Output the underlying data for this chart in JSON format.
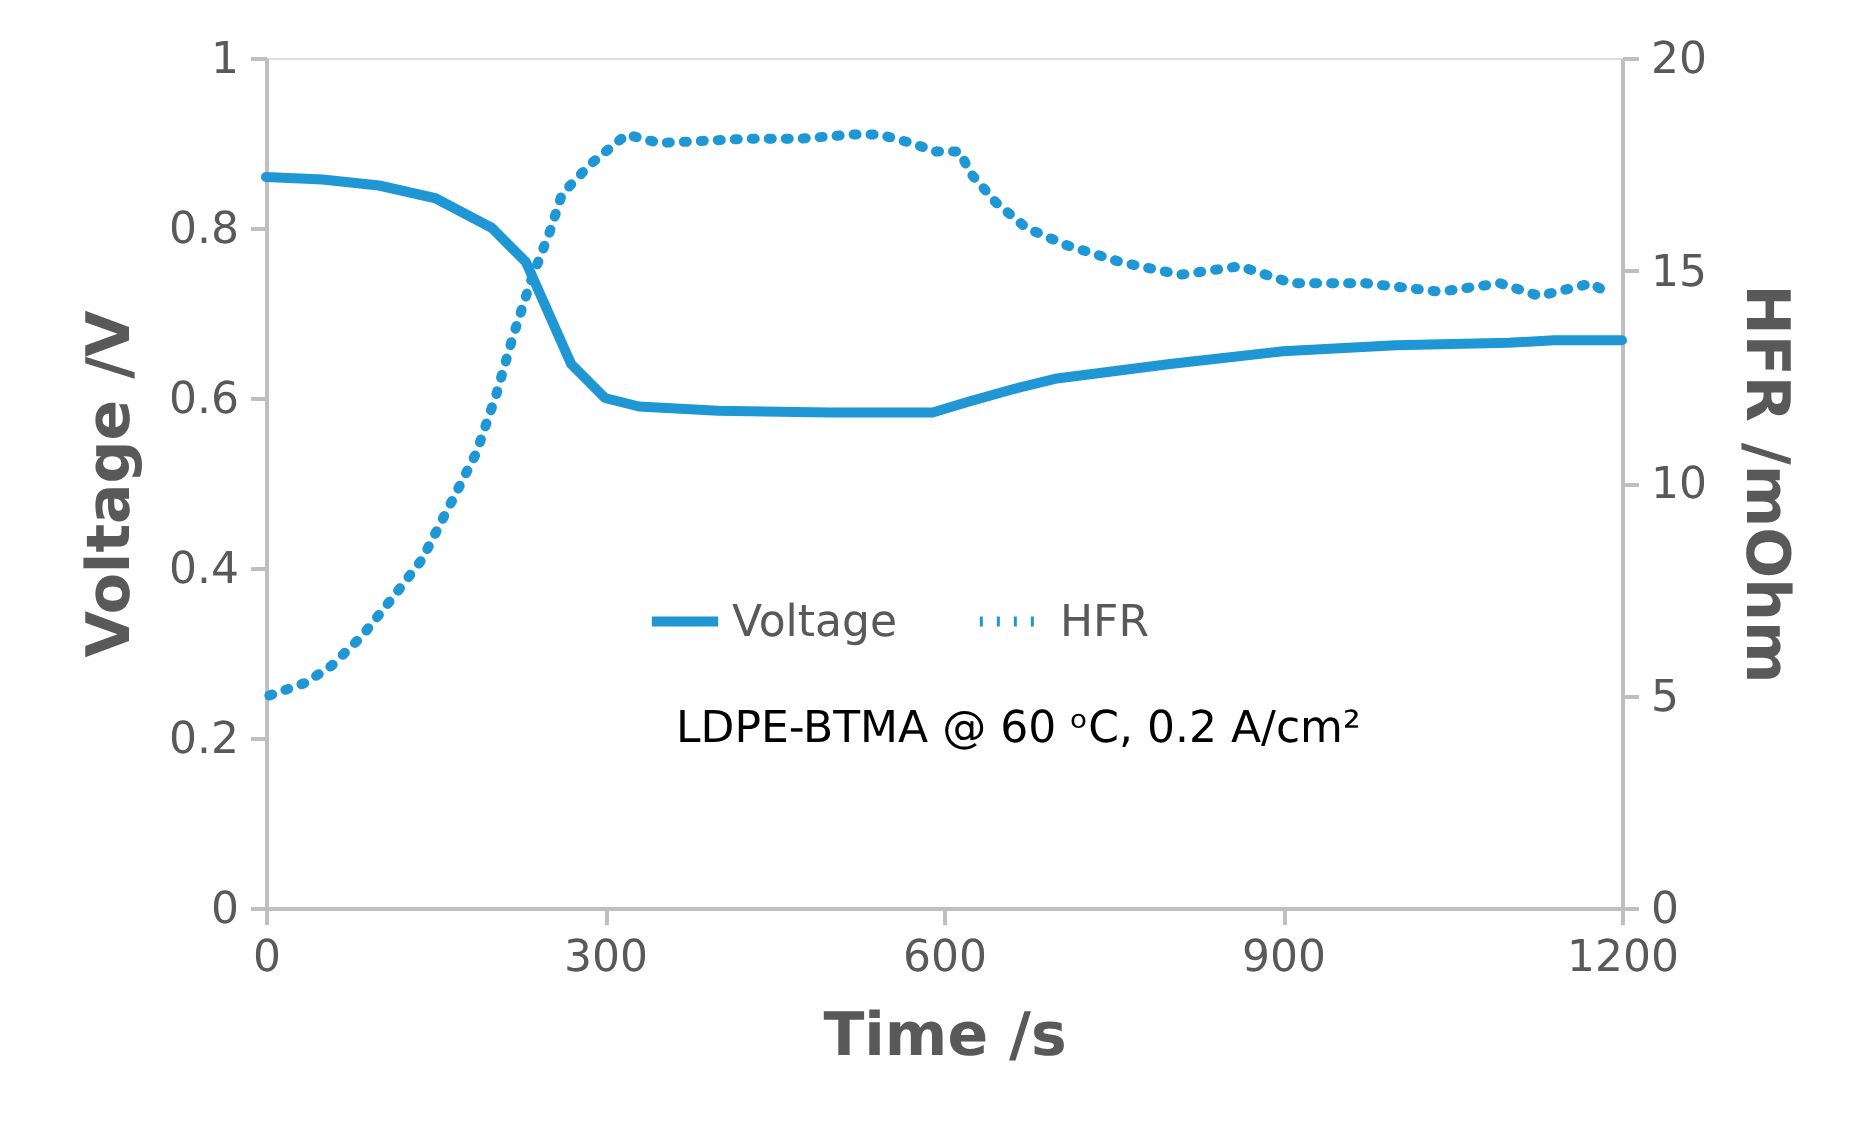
{
  "chart_data": {
    "type": "line",
    "xlabel": "Time /s",
    "ylabel": "Voltage /V",
    "y2label": "HFR /mOhm",
    "xlim": [
      0,
      1200
    ],
    "xticks": [
      0,
      300,
      600,
      900,
      1200
    ],
    "ylim": [
      0,
      1
    ],
    "yticks": [
      0,
      0.2,
      0.4,
      0.6,
      0.8,
      1
    ],
    "y2lim": [
      0,
      20
    ],
    "y2ticks": [
      0,
      5,
      10,
      15,
      20
    ],
    "grid": false,
    "legend": "center",
    "marker": "none",
    "annotations": [
      "LDPE-BTMA @ 60 ᵒC, 0.2 A/cm²"
    ],
    "series": [
      {
        "name": "Voltage",
        "color": "#1f97d4",
        "line_style": "solid",
        "x": [
          0,
          50,
          100,
          150,
          200,
          230,
          250,
          270,
          300,
          330,
          400,
          500,
          590,
          620,
          660,
          700,
          800,
          900,
          1000,
          1100,
          1140,
          1200
        ],
        "values": [
          0.86,
          0.857,
          0.85,
          0.835,
          0.8,
          0.76,
          0.7,
          0.64,
          0.6,
          0.59,
          0.585,
          0.583,
          0.583,
          0.595,
          0.61,
          0.623,
          0.64,
          0.655,
          0.662,
          0.665,
          0.668,
          0.668
        ]
      },
      {
        "name": "HFR",
        "color": "#1f97d4",
        "line_style": "dotted",
        "axis": "y2",
        "x": [
          3,
          35,
          58,
          85,
          115,
          138,
          165,
          186,
          204,
          218,
          235,
          251,
          262,
          287,
          319,
          348,
          425,
          472,
          519,
          543,
          571,
          593,
          614,
          623,
          646,
          673,
          708,
          756,
          809,
          862,
          908,
          973,
          1039,
          1092,
          1127,
          1173,
          1191
        ],
        "values": [
          5.0,
          5.3,
          5.7,
          6.4,
          7.4,
          8.2,
          9.6,
          10.7,
          12.1,
          13.4,
          14.8,
          15.9,
          16.8,
          17.5,
          18.2,
          18.0,
          18.1,
          18.1,
          18.2,
          18.2,
          18.0,
          17.8,
          17.8,
          17.3,
          16.6,
          16.0,
          15.6,
          15.2,
          14.9,
          15.1,
          14.7,
          14.7,
          14.5,
          14.7,
          14.4,
          14.7,
          14.4
        ]
      }
    ]
  }
}
